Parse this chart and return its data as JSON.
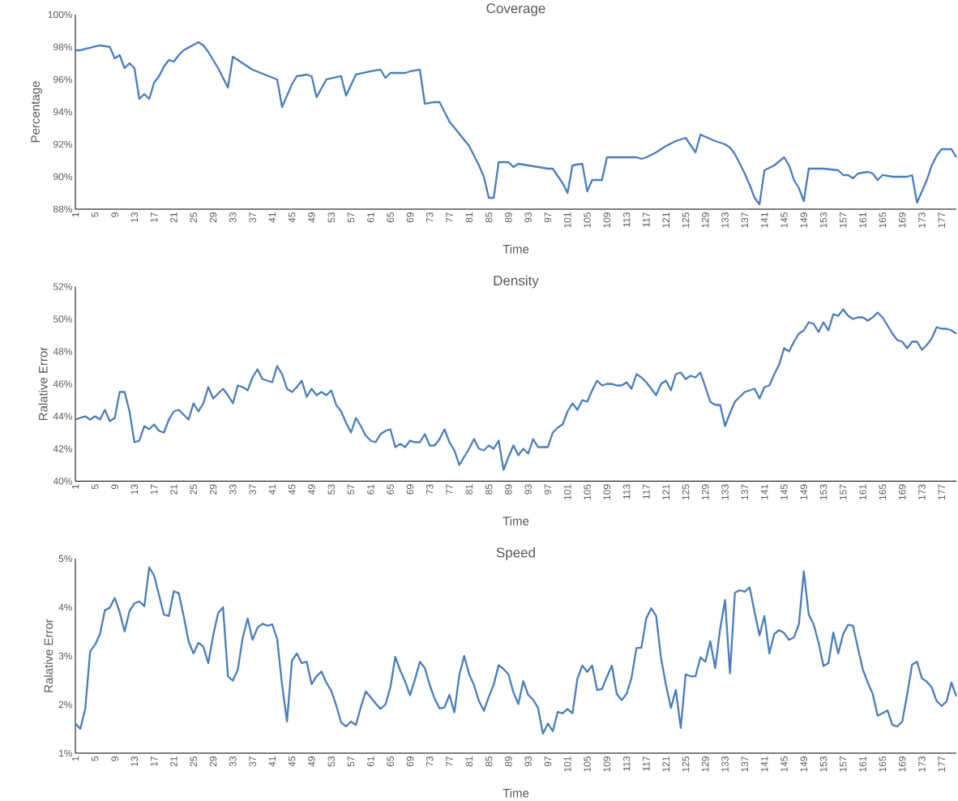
{
  "chart_data": [
    {
      "type": "line",
      "title": "Coverage",
      "xlabel": "Time",
      "ylabel": "Percentage",
      "color": "#4a7dbb",
      "xlim": [
        1,
        180
      ],
      "ylim": [
        88,
        100
      ],
      "xticks": [
        1,
        5,
        9,
        13,
        17,
        21,
        25,
        29,
        33,
        37,
        41,
        45,
        49,
        53,
        57,
        61,
        65,
        69,
        73,
        77,
        81,
        85,
        89,
        93,
        97,
        101,
        105,
        109,
        113,
        117,
        121,
        125,
        129,
        133,
        137,
        141,
        145,
        149,
        153,
        157,
        161,
        165,
        169,
        173,
        177
      ],
      "yticks": [
        {
          "value": 88,
          "label": "88%"
        },
        {
          "value": 90,
          "label": "90%"
        },
        {
          "value": 92,
          "label": "92%"
        },
        {
          "value": 94,
          "label": "94%"
        },
        {
          "value": 96,
          "label": "96%"
        },
        {
          "value": 98,
          "label": "98%"
        },
        {
          "value": 100,
          "label": "100%"
        }
      ],
      "x": [
        1,
        2,
        6,
        8,
        9,
        10,
        11,
        12,
        13,
        14,
        15,
        16,
        17,
        18,
        19,
        20,
        21,
        22,
        23,
        26,
        27,
        28,
        30,
        32,
        33,
        35,
        37,
        42,
        43,
        45,
        46,
        48,
        49,
        50,
        52,
        55,
        56,
        58,
        61,
        63,
        64,
        65,
        68,
        69,
        71,
        72,
        74,
        75,
        77,
        81,
        83,
        84,
        85,
        86,
        87,
        89,
        90,
        91,
        97,
        98,
        100,
        101,
        102,
        104,
        105,
        106,
        108,
        109,
        115,
        116,
        117,
        119,
        120,
        121,
        123,
        125,
        127,
        128,
        131,
        133,
        134,
        135,
        137,
        138,
        139,
        140,
        141,
        143,
        145,
        146,
        147,
        148,
        149,
        150,
        152,
        153,
        156,
        157,
        158,
        159,
        160,
        162,
        163,
        164,
        165,
        167,
        170,
        171,
        172,
        174,
        175,
        176,
        177,
        179,
        180
      ],
      "values": [
        97.8,
        97.8,
        98.1,
        98.0,
        97.3,
        97.5,
        96.7,
        97.0,
        96.7,
        94.8,
        95.1,
        94.8,
        95.8,
        96.2,
        96.8,
        97.2,
        97.1,
        97.5,
        97.8,
        98.3,
        98.1,
        97.7,
        96.7,
        95.5,
        97.4,
        97.0,
        96.6,
        96.0,
        94.3,
        95.7,
        96.2,
        96.3,
        96.2,
        94.9,
        96.0,
        96.2,
        95.0,
        96.3,
        96.5,
        96.6,
        96.1,
        96.4,
        96.4,
        96.5,
        96.6,
        94.5,
        94.6,
        94.6,
        93.4,
        91.9,
        90.7,
        90.0,
        88.7,
        88.7,
        90.9,
        90.9,
        90.6,
        90.8,
        90.5,
        90.5,
        89.6,
        89.0,
        90.7,
        90.8,
        89.1,
        89.8,
        89.8,
        91.2,
        91.2,
        91.1,
        91.2,
        91.5,
        91.7,
        91.9,
        92.2,
        92.4,
        91.5,
        92.6,
        92.2,
        92.0,
        91.8,
        91.4,
        90.2,
        89.5,
        88.7,
        88.3,
        90.4,
        90.7,
        91.2,
        90.7,
        89.8,
        89.3,
        88.5,
        90.5,
        90.5,
        90.5,
        90.4,
        90.1,
        90.1,
        89.9,
        90.2,
        90.3,
        90.2,
        89.8,
        90.1,
        90.0,
        90.0,
        90.1,
        88.4,
        89.8,
        90.7,
        91.3,
        91.7,
        91.7,
        91.2
      ]
    },
    {
      "type": "line",
      "title": "Density",
      "xlabel": "Time",
      "ylabel": "Ralative Error",
      "color": "#4a7dbb",
      "xlim": [
        1,
        180
      ],
      "ylim": [
        40,
        52
      ],
      "xticks": [
        1,
        5,
        9,
        13,
        17,
        21,
        25,
        29,
        33,
        37,
        41,
        45,
        49,
        53,
        57,
        61,
        65,
        69,
        73,
        77,
        81,
        85,
        89,
        93,
        97,
        101,
        105,
        109,
        113,
        117,
        121,
        125,
        129,
        133,
        137,
        141,
        145,
        149,
        153,
        157,
        161,
        165,
        169,
        173,
        177
      ],
      "yticks": [
        {
          "value": 40,
          "label": "40%"
        },
        {
          "value": 42,
          "label": "42%"
        },
        {
          "value": 44,
          "label": "44%"
        },
        {
          "value": 46,
          "label": "46%"
        },
        {
          "value": 48,
          "label": "48%"
        },
        {
          "value": 50,
          "label": "50%"
        },
        {
          "value": 52,
          "label": "52%"
        }
      ],
      "x": [
        1,
        2,
        3,
        4,
        5,
        6,
        7,
        8,
        9,
        10,
        11,
        12,
        13,
        14,
        15,
        16,
        17,
        18,
        19,
        20,
        21,
        22,
        23,
        24,
        25,
        26,
        27,
        28,
        29,
        30,
        31,
        32,
        33,
        34,
        35,
        36,
        37,
        38,
        39,
        40,
        41,
        42,
        43,
        44,
        45,
        46,
        47,
        48,
        49,
        50,
        51,
        52,
        53,
        54,
        55,
        56,
        57,
        58,
        59,
        60,
        61,
        62,
        63,
        64,
        65,
        66,
        67,
        68,
        69,
        70,
        71,
        72,
        73,
        74,
        75,
        76,
        77,
        78,
        79,
        80,
        81,
        82,
        83,
        84,
        85,
        86,
        87,
        88,
        89,
        90,
        91,
        92,
        93,
        94,
        95,
        96,
        97,
        98,
        99,
        100,
        101,
        102,
        103,
        104,
        105,
        106,
        107,
        108,
        109,
        110,
        111,
        112,
        113,
        114,
        115,
        116,
        117,
        118,
        119,
        120,
        121,
        122,
        123,
        124,
        125,
        126,
        127,
        128,
        129,
        130,
        131,
        132,
        133,
        134,
        135,
        136,
        137,
        138,
        139,
        140,
        141,
        142,
        143,
        144,
        145,
        146,
        147,
        148,
        149,
        150,
        151,
        152,
        153,
        154,
        155,
        156,
        157,
        158,
        159,
        160,
        161,
        162,
        163,
        164,
        165,
        166,
        167,
        168,
        169,
        170,
        171,
        172,
        173,
        174,
        175,
        176,
        177,
        178,
        179,
        180
      ],
      "values": [
        43.8,
        43.9,
        44.0,
        43.8,
        44.0,
        43.8,
        44.4,
        43.7,
        43.9,
        45.5,
        45.5,
        44.3,
        42.4,
        42.5,
        43.4,
        43.2,
        43.5,
        43.1,
        43.0,
        43.8,
        44.3,
        44.4,
        44.1,
        43.8,
        44.8,
        44.3,
        44.8,
        45.8,
        45.1,
        45.4,
        45.7,
        45.3,
        44.8,
        45.9,
        45.8,
        45.6,
        46.4,
        46.9,
        46.3,
        46.2,
        46.1,
        47.1,
        46.6,
        45.7,
        45.5,
        45.8,
        46.2,
        45.2,
        45.7,
        45.3,
        45.5,
        45.3,
        45.6,
        44.7,
        44.3,
        43.6,
        43.0,
        43.9,
        43.4,
        42.8,
        42.5,
        42.4,
        42.9,
        43.1,
        43.2,
        42.1,
        42.3,
        42.1,
        42.5,
        42.4,
        42.4,
        42.9,
        42.2,
        42.2,
        42.6,
        43.2,
        42.4,
        41.9,
        41.0,
        41.5,
        42.0,
        42.6,
        42.0,
        41.9,
        42.2,
        42.0,
        42.5,
        40.7,
        41.5,
        42.2,
        41.6,
        42.0,
        41.7,
        42.6,
        42.1,
        42.1,
        42.1,
        43.0,
        43.3,
        43.5,
        44.3,
        44.8,
        44.4,
        45.0,
        44.9,
        45.6,
        46.2,
        45.9,
        46.0,
        46.0,
        45.9,
        45.9,
        46.1,
        45.7,
        46.6,
        46.4,
        46.1,
        45.7,
        45.3,
        46.0,
        46.2,
        45.6,
        46.6,
        46.7,
        46.3,
        46.5,
        46.4,
        46.7,
        45.8,
        44.9,
        44.7,
        44.7,
        43.4,
        44.2,
        44.9,
        45.2,
        45.5,
        45.6,
        45.7,
        45.1,
        45.8,
        45.9,
        46.6,
        47.2,
        48.2,
        48.0,
        48.6,
        49.1,
        49.3,
        49.8,
        49.7,
        49.2,
        49.8,
        49.3,
        50.3,
        50.2,
        50.6,
        50.2,
        50.0,
        50.1,
        50.1,
        49.9,
        50.1,
        50.4,
        50.1,
        49.6,
        49.1,
        48.7,
        48.6,
        48.2,
        48.6,
        48.6,
        48.1,
        48.4,
        48.8,
        49.5,
        49.4,
        49.4,
        49.3,
        49.1
      ]
    },
    {
      "type": "line",
      "title": "Speed",
      "xlabel": "Time",
      "ylabel": "Ralative Error",
      "color": "#4a7dbb",
      "xlim": [
        1,
        180
      ],
      "ylim": [
        1,
        5
      ],
      "xticks": [
        1,
        5,
        9,
        13,
        17,
        21,
        25,
        29,
        33,
        37,
        41,
        45,
        49,
        53,
        57,
        61,
        65,
        69,
        73,
        77,
        81,
        85,
        89,
        93,
        97,
        101,
        105,
        109,
        113,
        117,
        121,
        125,
        129,
        133,
        137,
        141,
        145,
        149,
        153,
        157,
        161,
        165,
        169,
        173,
        177
      ],
      "yticks": [
        {
          "value": 1,
          "label": "1%"
        },
        {
          "value": 2,
          "label": "2%"
        },
        {
          "value": 3,
          "label": "3%"
        },
        {
          "value": 4,
          "label": "4%"
        },
        {
          "value": 5,
          "label": "5%"
        }
      ],
      "x": [
        1,
        2,
        3,
        4,
        5,
        6,
        7,
        8,
        9,
        10,
        11,
        12,
        13,
        14,
        15,
        16,
        17,
        18,
        19,
        20,
        21,
        22,
        23,
        24,
        25,
        26,
        27,
        28,
        29,
        30,
        31,
        32,
        33,
        34,
        35,
        36,
        37,
        38,
        39,
        40,
        41,
        42,
        43,
        44,
        45,
        46,
        47,
        48,
        49,
        50,
        51,
        52,
        53,
        54,
        55,
        56,
        57,
        58,
        59,
        60,
        61,
        62,
        63,
        64,
        65,
        66,
        67,
        68,
        69,
        70,
        71,
        72,
        73,
        74,
        75,
        76,
        77,
        78,
        79,
        80,
        81,
        82,
        83,
        84,
        85,
        86,
        87,
        88,
        89,
        90,
        91,
        92,
        93,
        94,
        95,
        96,
        97,
        98,
        99,
        100,
        101,
        102,
        103,
        104,
        105,
        106,
        107,
        108,
        109,
        110,
        111,
        112,
        113,
        114,
        115,
        116,
        117,
        118,
        119,
        120,
        121,
        122,
        123,
        124,
        125,
        126,
        127,
        128,
        129,
        130,
        131,
        132,
        133,
        134,
        135,
        136,
        137,
        138,
        139,
        140,
        141,
        142,
        143,
        144,
        145,
        146,
        147,
        148,
        149,
        150,
        151,
        152,
        153,
        154,
        155,
        156,
        157,
        158,
        159,
        160,
        161,
        162,
        163,
        164,
        165,
        166,
        167,
        168,
        169,
        170,
        171,
        172,
        173,
        174,
        175,
        176,
        177,
        178,
        179,
        180
      ],
      "values": [
        1.61,
        1.5,
        1.91,
        3.09,
        3.23,
        3.45,
        3.94,
        3.99,
        4.19,
        3.9,
        3.5,
        3.92,
        4.08,
        4.12,
        4.02,
        4.82,
        4.65,
        4.25,
        3.85,
        3.82,
        4.33,
        4.29,
        3.82,
        3.3,
        3.05,
        3.27,
        3.19,
        2.85,
        3.42,
        3.88,
        4.0,
        2.58,
        2.49,
        2.72,
        3.37,
        3.77,
        3.33,
        3.58,
        3.66,
        3.62,
        3.65,
        3.35,
        2.4,
        1.65,
        2.9,
        3.05,
        2.85,
        2.88,
        2.42,
        2.58,
        2.68,
        2.45,
        2.28,
        1.98,
        1.63,
        1.55,
        1.65,
        1.58,
        1.95,
        2.27,
        2.15,
        2.02,
        1.91,
        2.0,
        2.35,
        2.98,
        2.7,
        2.47,
        2.19,
        2.52,
        2.88,
        2.75,
        2.4,
        2.12,
        1.92,
        1.94,
        2.2,
        1.84,
        2.6,
        3.0,
        2.62,
        2.4,
        2.07,
        1.87,
        2.16,
        2.41,
        2.81,
        2.73,
        2.62,
        2.25,
        2.01,
        2.48,
        2.2,
        2.1,
        1.93,
        1.4,
        1.61,
        1.45,
        1.85,
        1.82,
        1.91,
        1.82,
        2.53,
        2.8,
        2.67,
        2.8,
        2.3,
        2.32,
        2.57,
        2.8,
        2.22,
        2.09,
        2.22,
        2.55,
        3.16,
        3.17,
        3.77,
        3.98,
        3.82,
        2.95,
        2.4,
        1.93,
        2.3,
        1.52,
        2.62,
        2.58,
        2.58,
        2.97,
        2.88,
        3.3,
        2.75,
        3.55,
        4.15,
        2.64,
        4.3,
        4.35,
        4.32,
        4.41,
        3.9,
        3.42,
        3.82,
        3.05,
        3.45,
        3.53,
        3.47,
        3.33,
        3.38,
        3.65,
        4.74,
        3.85,
        3.65,
        3.27,
        2.79,
        2.85,
        3.48,
        3.05,
        3.45,
        3.64,
        3.62,
        3.16,
        2.72,
        2.45,
        2.22,
        1.77,
        1.82,
        1.88,
        1.58,
        1.55,
        1.65,
        2.2,
        2.82,
        2.88,
        2.54,
        2.47,
        2.35,
        2.07,
        1.97,
        2.06,
        2.45,
        2.17
      ]
    }
  ]
}
